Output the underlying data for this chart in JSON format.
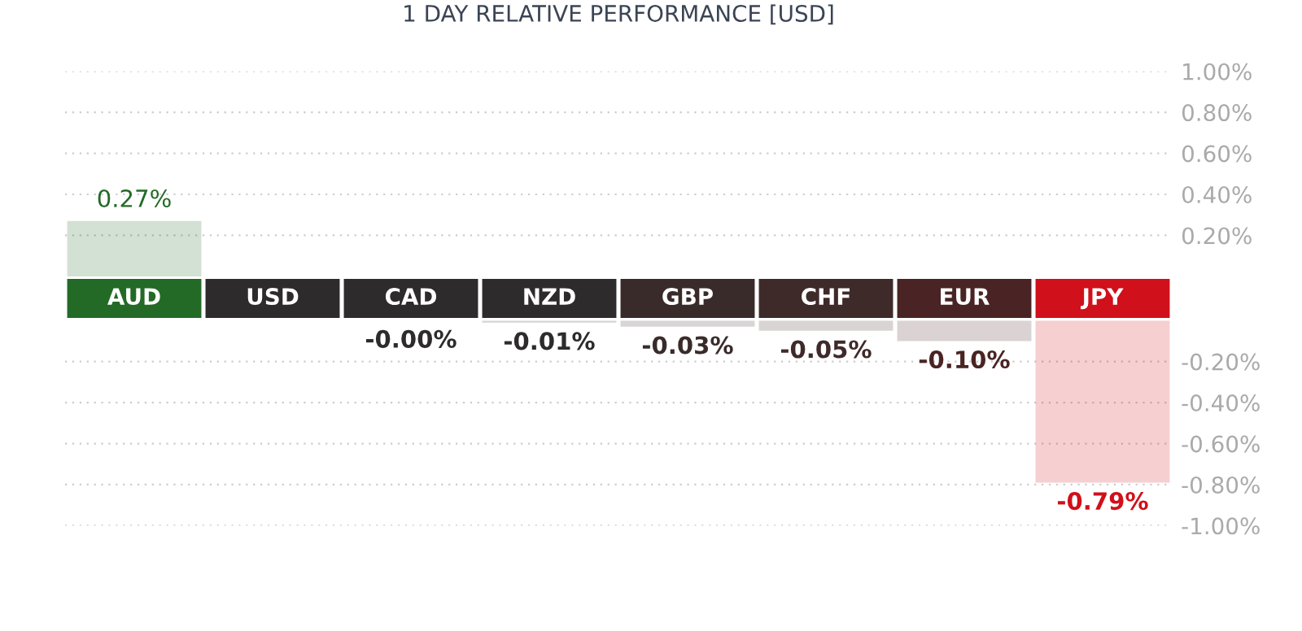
{
  "chart_data": [
    {
      "type": "bar",
      "title": "1 DAY RELATIVE PERFORMANCE [USD]",
      "categories": [
        "AUD",
        "USD",
        "CAD",
        "NZD",
        "GBP",
        "CHF",
        "EUR",
        "JPY"
      ],
      "values": [
        0.27,
        null,
        null,
        null,
        null,
        null,
        null,
        null
      ],
      "value_labels": [
        "0.27%",
        null,
        null,
        null,
        null,
        null,
        null,
        null
      ],
      "colors": [
        "#236a26",
        "#2d2b2c",
        "#2d2b2c",
        "#2d2b2c",
        "#3a2b2b",
        "#3f2a2a",
        "#4a2424",
        "#d0101a"
      ],
      "ylim": [
        0,
        1.0
      ],
      "yticks": [
        {
          "value": 1.0,
          "label": "1.00%"
        },
        {
          "value": 0.8,
          "label": "0.80%"
        },
        {
          "value": 0.6,
          "label": "0.60%"
        },
        {
          "value": 0.4,
          "label": "0.40%"
        },
        {
          "value": 0.2,
          "label": "0.20%"
        }
      ],
      "grid": "y"
    },
    {
      "type": "bar",
      "categories": [
        null,
        null,
        null,
        null,
        null,
        null,
        null,
        null
      ],
      "values": [
        null,
        null,
        -0.0,
        -0.01,
        -0.03,
        -0.05,
        -0.1,
        -0.79
      ],
      "value_labels": [
        null,
        null,
        "-0.00%",
        "-0.01%",
        "-0.03%",
        "-0.05%",
        "-0.10%",
        "-0.79%"
      ],
      "colors": [
        "#236a26",
        "#2d2b2c",
        "#2d2b2c",
        "#2d2b2c",
        "#3a2b2b",
        "#3f2a2a",
        "#4a2424",
        "#d0101a"
      ],
      "ylim": [
        -1.0,
        0
      ],
      "yticks": [
        {
          "value": -0.2,
          "label": "-0.20%"
        },
        {
          "value": -0.4,
          "label": "-0.40%"
        },
        {
          "value": -0.6,
          "label": "-0.60%"
        },
        {
          "value": -0.8,
          "label": "-0.80%"
        },
        {
          "value": -1.0,
          "label": "-1.00%"
        }
      ],
      "grid": "y"
    }
  ]
}
